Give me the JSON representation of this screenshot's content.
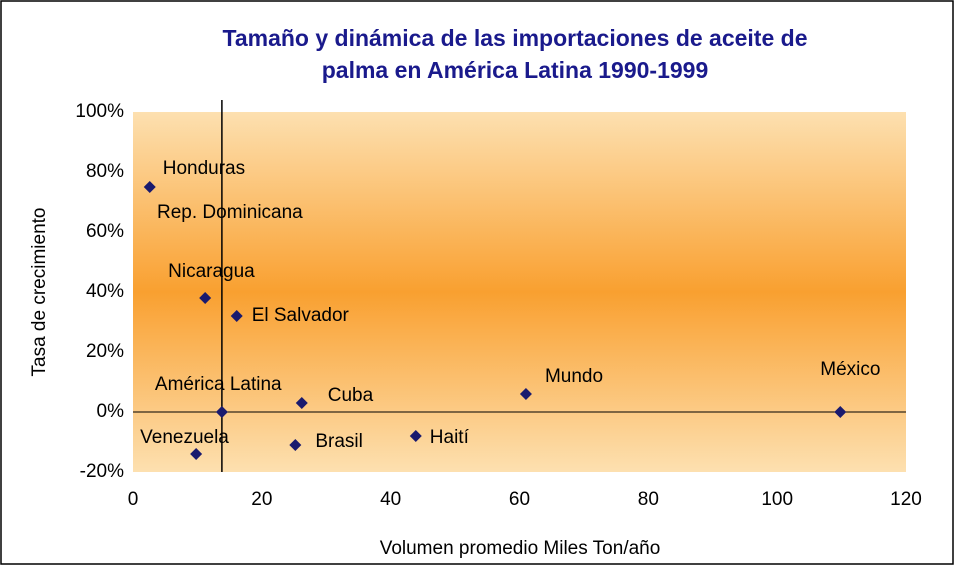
{
  "chart_data": {
    "type": "scatter",
    "title": [
      "Tamaño y dinámica de las importaciones de aceite de",
      "palma en América Latina 1990-1999"
    ],
    "x_label": "Volumen promedio Miles Ton/año",
    "y_label": "Tasa de crecimiento",
    "color": "#1a1a6e",
    "points": [
      {
        "label": "Honduras",
        "x": 2.6,
        "y": 75
      },
      {
        "label": "Nicaragua",
        "x": 11.2,
        "y": 38
      },
      {
        "label": "El Salvador",
        "x": 16.1,
        "y": 32
      },
      {
        "label": "América Latina",
        "x": 13.8,
        "y": 0
      },
      {
        "label": "Cuba",
        "x": 26.2,
        "y": 3
      },
      {
        "label": "Brasil",
        "x": 25.2,
        "y": -11
      },
      {
        "label": "Haití",
        "x": 43.9,
        "y": -8
      },
      {
        "label": "Mundo",
        "x": 61,
        "y": 6
      },
      {
        "label": "México",
        "x": 109.8,
        "y": 0
      },
      {
        "label": "Venezuela",
        "x": 9.8,
        "y": -14
      }
    ],
    "annotations": [
      "Rep. Dominicana"
    ],
    "vline": 13.8,
    "xlim": [
      0,
      120
    ],
    "xticks": [
      0,
      20,
      40,
      60,
      80,
      100,
      120
    ],
    "ylim": [
      -20,
      100
    ],
    "yticks": [
      {
        "value": -20,
        "label": "-20%"
      },
      {
        "value": 0,
        "label": "0%"
      },
      {
        "value": 20,
        "label": "20%"
      },
      {
        "value": 40,
        "label": "40%"
      },
      {
        "value": 60,
        "label": "60%"
      },
      {
        "value": 80,
        "label": "80%"
      },
      {
        "value": 100,
        "label": "100%"
      }
    ]
  }
}
